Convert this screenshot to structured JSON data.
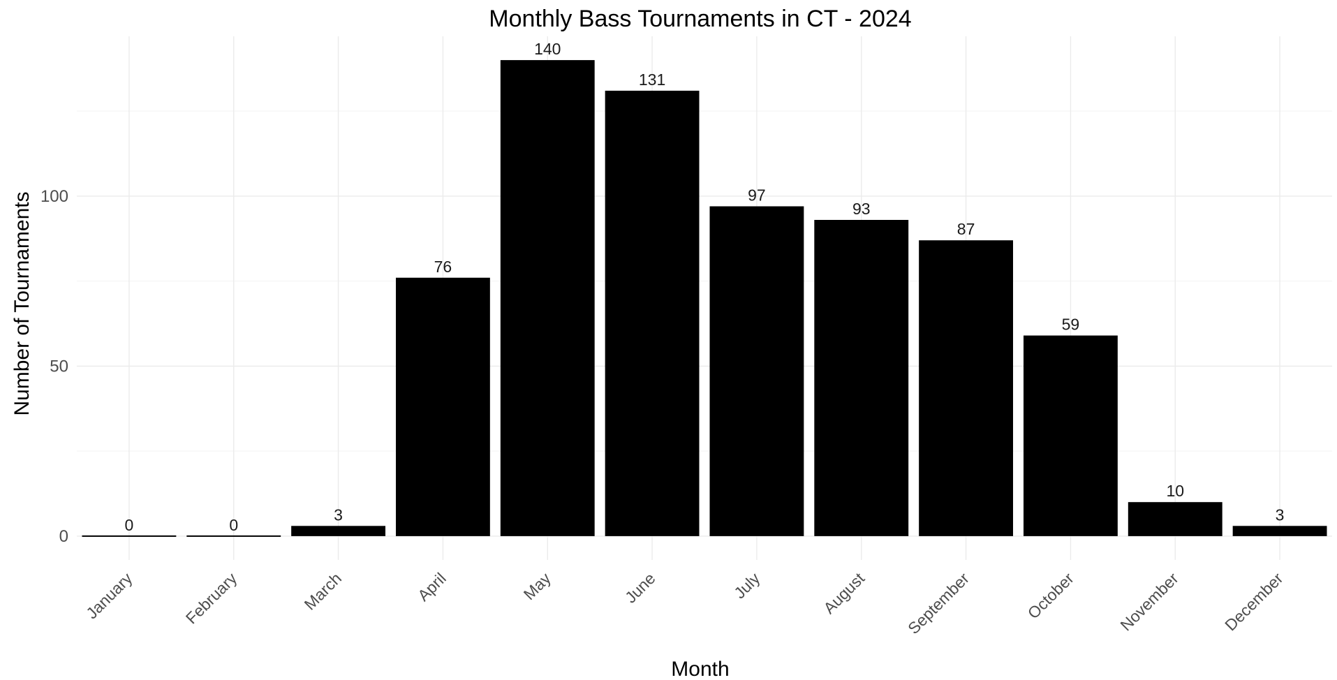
{
  "chart_data": {
    "type": "bar",
    "title": "Monthly Bass Tournaments in CT - 2024",
    "xlabel": "Month",
    "ylabel": "Number of Tournaments",
    "categories": [
      "January",
      "February",
      "March",
      "April",
      "May",
      "June",
      "July",
      "August",
      "September",
      "October",
      "November",
      "December"
    ],
    "values": [
      0,
      0,
      3,
      76,
      140,
      131,
      97,
      93,
      87,
      59,
      10,
      3
    ],
    "data_labels": [
      "0",
      "0",
      "3",
      "76",
      "140",
      "131",
      "97",
      "93",
      "87",
      "59",
      "10",
      "3"
    ],
    "yticks": [
      0,
      50,
      100
    ],
    "ytick_labels": [
      "0",
      "50",
      "100"
    ],
    "ylim": [
      -7,
      147
    ],
    "grid": true,
    "legend": "none",
    "bar_color": "#000000"
  }
}
